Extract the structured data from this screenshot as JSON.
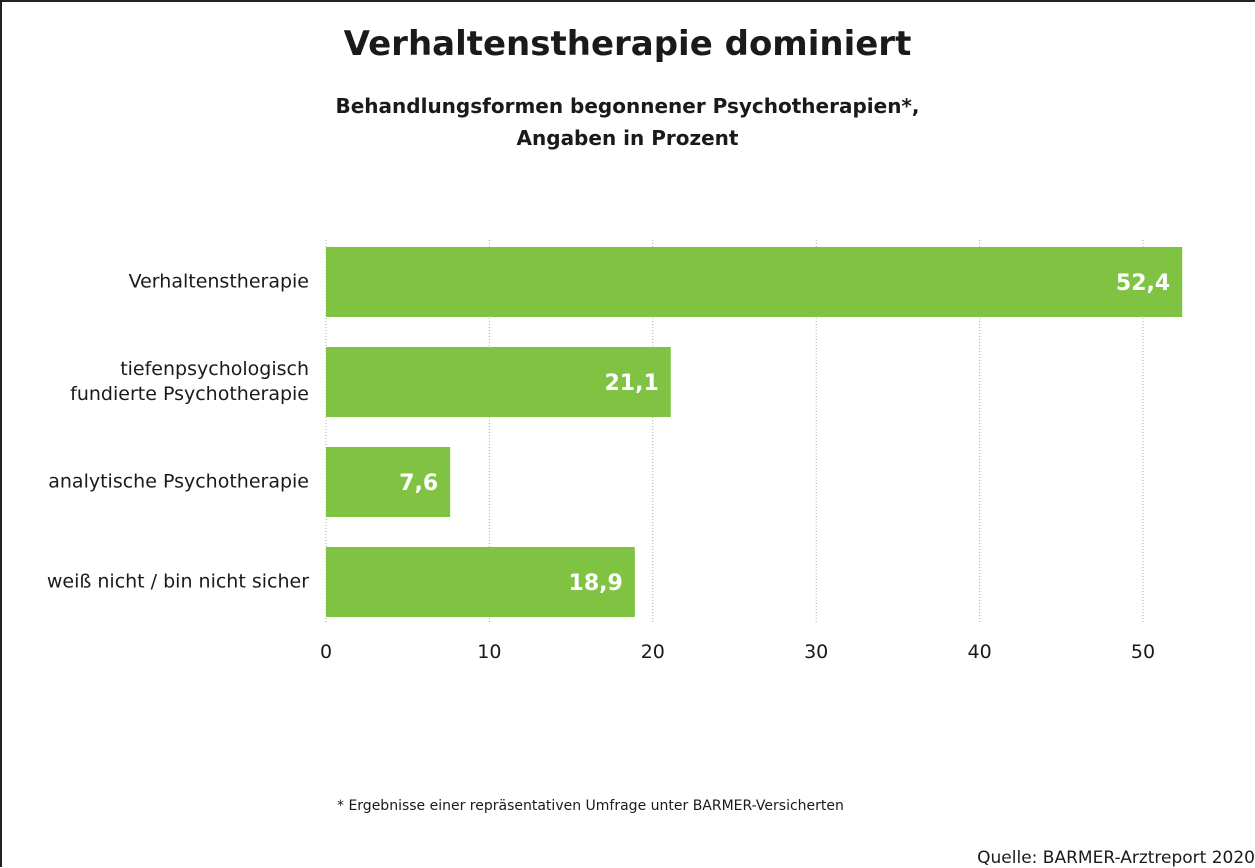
{
  "chart_data": {
    "type": "bar",
    "orientation": "horizontal",
    "title": "Verhaltenstherapie dominiert",
    "subtitle": "Behandlungsformen begonnener Psychotherapien*,\nAngaben in Prozent",
    "categories": [
      "Verhaltenstherapie",
      "tiefenpsychologisch\nfundierte Psychotherapie",
      "analytische Psychotherapie",
      "weiß nicht / bin nicht sicher"
    ],
    "values": [
      52.4,
      21.1,
      7.6,
      18.9
    ],
    "value_labels": [
      "52,4",
      "21,1",
      "7,6",
      "18,9"
    ],
    "color": "#80c342",
    "xlim": [
      0,
      55
    ],
    "xticks": [
      0,
      10,
      20,
      30,
      40,
      50
    ],
    "grid": true,
    "footnote": "* Ergebnisse einer repräsentativen Umfrage unter BARMER-Versicherten",
    "source": "Quelle: BARMER-Arztreport 2020"
  }
}
